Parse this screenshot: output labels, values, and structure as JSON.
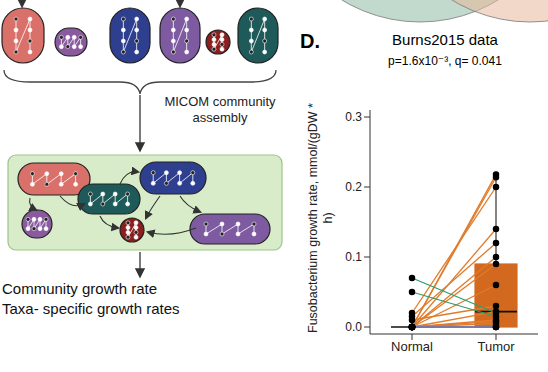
{
  "diagram": {
    "step_label": "MICOM community assembly",
    "outputs": [
      "Community growth rate",
      "Taxa- specific growth rates"
    ]
  },
  "panel": "D.",
  "chart_data": {
    "type": "box_paired",
    "title": "Burns2015 data",
    "subtitle": "p=1.6x10⁻³, q= 0.041",
    "y_label": "Fusobacterium growth rate, mmol/(gDW * h)",
    "categories": [
      "Normal",
      "Tumor"
    ],
    "ylim": [
      -0.01,
      0.31
    ],
    "yticks": [
      {
        "value": 0,
        "label": "0.0"
      },
      {
        "value": 0.1,
        "label": "0.1"
      },
      {
        "value": 0.2,
        "label": "0.2"
      },
      {
        "value": 0.3,
        "label": "0.3"
      }
    ],
    "grid": false,
    "boxes": [
      {
        "q1": 0,
        "median": 0,
        "q3": 0,
        "whisker_low": 0,
        "whisker_high": 0
      },
      {
        "q1": 0,
        "median": 0.022,
        "q3": 0.09,
        "whisker_low": 0,
        "whisker_high": 0.218
      }
    ],
    "box_colors": [
      "#6a6fb0",
      "#d2691e"
    ],
    "series": [
      {
        "color": "#e07b2a",
        "values": [
          0,
          0.218
        ]
      },
      {
        "color": "#e07b2a",
        "values": [
          0,
          0.214
        ]
      },
      {
        "color": "#e07b2a",
        "values": [
          0.02,
          0.2
        ]
      },
      {
        "color": "#e07b2a",
        "values": [
          0,
          0.14
        ]
      },
      {
        "color": "#e07b2a",
        "values": [
          0.015,
          0.12
        ]
      },
      {
        "color": "#e07b2a",
        "values": [
          0,
          0.1
        ]
      },
      {
        "color": "#e07b2a",
        "values": [
          0,
          0.09
        ]
      },
      {
        "color": "#e07b2a",
        "values": [
          0,
          0.06
        ]
      },
      {
        "color": "#e07b2a",
        "values": [
          0.01,
          0.03
        ]
      },
      {
        "color": "#e07b2a",
        "values": [
          0,
          0.022
        ]
      },
      {
        "color": "#2e9e6e",
        "values": [
          0.07,
          0.02
        ]
      },
      {
        "color": "#2e9e6e",
        "values": [
          0.05,
          0.015
        ]
      },
      {
        "color": "#e07b2a",
        "values": [
          0,
          0.01
        ]
      },
      {
        "color": "#e07b2a",
        "values": [
          0,
          0.008
        ]
      },
      {
        "color": "#e07b2a",
        "values": [
          0,
          0.005
        ]
      },
      {
        "color": "#8a6fb0",
        "values": [
          0,
          0
        ]
      },
      {
        "color": "#2e9e6e",
        "values": [
          0,
          0
        ]
      },
      {
        "color": "#8a6fb0",
        "values": [
          0,
          0
        ]
      }
    ]
  }
}
